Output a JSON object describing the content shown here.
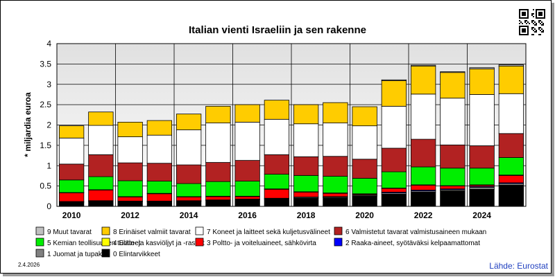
{
  "chart_data": {
    "type": "bar",
    "stacked": true,
    "title": "Italian vienti Israeliin ja sen rakenne",
    "ylabel": "* miljardia euroa",
    "xlabel": "",
    "ylim": [
      0,
      4
    ],
    "yticks": [
      "0",
      "0.5",
      "1",
      "1.5",
      "2",
      "2.5",
      "3",
      "3.5",
      "4"
    ],
    "grid": true,
    "legend_placement": "bottom",
    "categories": [
      "2010",
      "2011",
      "2012",
      "2013",
      "2014",
      "2015",
      "2016",
      "2017",
      "2018",
      "2019",
      "2020",
      "2021",
      "2022",
      "2023",
      "2024",
      "2025"
    ],
    "xtick_labels": [
      "2010",
      "2012",
      "2014",
      "2016",
      "2018",
      "2020",
      "2022",
      "2024"
    ],
    "series": [
      {
        "name": "0 Elintarvikkeet",
        "color": "#000000",
        "values": [
          0.1,
          0.12,
          0.11,
          0.11,
          0.12,
          0.14,
          0.16,
          0.18,
          0.2,
          0.21,
          0.25,
          0.3,
          0.35,
          0.38,
          0.42,
          0.52
        ]
      },
      {
        "name": "1 Juomat ja tupakka",
        "color": "#808080",
        "values": [
          0.01,
          0.01,
          0.01,
          0.01,
          0.01,
          0.01,
          0.01,
          0.01,
          0.02,
          0.02,
          0.02,
          0.03,
          0.03,
          0.03,
          0.05,
          0.04
        ]
      },
      {
        "name": "2 Raaka-aineet, syötäväksi kelpaamattomat",
        "color": "#0000ff",
        "values": [
          0.01,
          0.01,
          0.01,
          0.01,
          0.01,
          0.01,
          0.01,
          0.01,
          0.01,
          0.01,
          0.01,
          0.02,
          0.02,
          0.02,
          0.02,
          0.02
        ]
      },
      {
        "name": "3 Poltto- ja voiteluaineet, sähkövirta",
        "color": "#ff0000",
        "values": [
          0.21,
          0.26,
          0.1,
          0.18,
          0.09,
          0.08,
          0.06,
          0.22,
          0.12,
          0.08,
          0.02,
          0.09,
          0.12,
          0.07,
          0.03,
          0.18
        ]
      },
      {
        "name": "4 Eläin- ja kasviöljyt ja -rasvat",
        "color": "#ffff00",
        "values": [
          0.01,
          0.01,
          0.01,
          0.01,
          0.01,
          0.01,
          0.01,
          0.01,
          0.01,
          0.01,
          0.01,
          0.01,
          0.01,
          0.01,
          0.01,
          0.01
        ]
      },
      {
        "name": "5 Kemian teollisuuden tuotteet",
        "color": "#00ee00",
        "values": [
          0.31,
          0.32,
          0.39,
          0.3,
          0.32,
          0.36,
          0.37,
          0.36,
          0.4,
          0.41,
          0.38,
          0.4,
          0.44,
          0.43,
          0.41,
          0.43
        ]
      },
      {
        "name": "6 Valmistetut tavarat valmistusaineen mukaan",
        "color": "#b22222",
        "values": [
          0.39,
          0.54,
          0.44,
          0.44,
          0.46,
          0.47,
          0.51,
          0.48,
          0.46,
          0.49,
          0.47,
          0.58,
          0.68,
          0.57,
          0.55,
          0.59
        ]
      },
      {
        "name": "7 Koneet ja laitteet sekä kuljetusvälineet",
        "color": "#ffffff",
        "values": [
          0.64,
          0.72,
          0.64,
          0.69,
          0.86,
          0.97,
          0.94,
          0.87,
          0.81,
          0.82,
          0.82,
          1.03,
          1.11,
          1.15,
          1.26,
          0.98
        ]
      },
      {
        "name": "8 Erinäiset valmiit tavarat",
        "color": "#ffcc00",
        "values": [
          0.3,
          0.33,
          0.36,
          0.36,
          0.39,
          0.41,
          0.43,
          0.47,
          0.47,
          0.5,
          0.47,
          0.63,
          0.69,
          0.63,
          0.63,
          0.68
        ]
      },
      {
        "name": "9 Muut tavarat",
        "color": "#c0c0c0",
        "values": [
          0.0,
          0.0,
          0.0,
          0.0,
          0.0,
          0.0,
          0.0,
          0.0,
          0.0,
          0.0,
          0.0,
          0.02,
          0.02,
          0.02,
          0.03,
          0.03
        ]
      }
    ],
    "legend_order": [
      9,
      8,
      7,
      6,
      5,
      4,
      3,
      2,
      1,
      0
    ],
    "date_label": "2.4.2026",
    "source_label": "Lähde: Eurostat",
    "plot_background_top": "#e0e0e0",
    "plot_background_bottom": "#ffffff"
  }
}
